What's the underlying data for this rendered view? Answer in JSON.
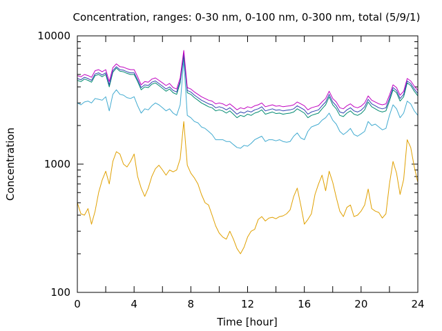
{
  "chart_data": {
    "type": "line",
    "title": "Concentration, ranges: 0-30 nm, 0-100 nm, 0-300 nm, total (5/9/1)",
    "xlabel": "Time [hour]",
    "ylabel": "Concentration",
    "xlim": [
      0,
      24
    ],
    "ylim": [
      100,
      10000
    ],
    "yscale": "log",
    "grid": false,
    "legend": "none",
    "xticks": [
      "0",
      "4",
      "8",
      "12",
      "16",
      "20",
      "24"
    ],
    "yticks": [
      "100",
      "1000",
      "10000"
    ],
    "series": [
      {
        "color": "#e0a000",
        "x": [
          0,
          0.25,
          0.5,
          0.75,
          1,
          1.25,
          1.5,
          1.75,
          2,
          2.25,
          2.5,
          2.75,
          3,
          3.25,
          3.5,
          3.75,
          4,
          4.25,
          4.5,
          4.75,
          5,
          5.25,
          5.5,
          5.75,
          6,
          6.25,
          6.5,
          6.75,
          7,
          7.25,
          7.5,
          7.75,
          8,
          8.25,
          8.5,
          8.75,
          9,
          9.25,
          9.5,
          9.75,
          10,
          10.25,
          10.5,
          10.75,
          11,
          11.25,
          11.5,
          11.75,
          12,
          12.25,
          12.5,
          12.75,
          13,
          13.25,
          13.5,
          13.75,
          14,
          14.25,
          14.5,
          14.75,
          15,
          15.25,
          15.5,
          15.75,
          16,
          16.25,
          16.5,
          16.75,
          17,
          17.25,
          17.5,
          17.75,
          18,
          18.25,
          18.5,
          18.75,
          19,
          19.25,
          19.5,
          19.75,
          20,
          20.25,
          20.5,
          20.75,
          21,
          21.25,
          21.5,
          21.75,
          22,
          22.25,
          22.5,
          22.75,
          23,
          23.25,
          23.5,
          23.75,
          24
        ],
        "y": [
          500,
          410,
          400,
          450,
          340,
          430,
          600,
          750,
          880,
          700,
          1050,
          1250,
          1200,
          1000,
          950,
          1050,
          1200,
          800,
          650,
          560,
          650,
          800,
          920,
          980,
          900,
          820,
          900,
          870,
          900,
          1100,
          2150,
          980,
          850,
          780,
          700,
          580,
          500,
          480,
          400,
          330,
          290,
          270,
          260,
          300,
          260,
          220,
          200,
          225,
          270,
          300,
          310,
          370,
          390,
          360,
          380,
          385,
          375,
          390,
          395,
          410,
          440,
          560,
          650,
          480,
          340,
          370,
          410,
          580,
          700,
          820,
          620,
          880,
          720,
          550,
          430,
          390,
          460,
          480,
          390,
          400,
          430,
          480,
          640,
          450,
          430,
          420,
          380,
          410,
          700,
          1050,
          850,
          580,
          760,
          1550,
          1350,
          950,
          720
        ]
      },
      {
        "color": "#40aad0",
        "x": [
          0,
          0.25,
          0.5,
          0.75,
          1,
          1.25,
          1.5,
          1.75,
          2,
          2.25,
          2.5,
          2.75,
          3,
          3.25,
          3.5,
          3.75,
          4,
          4.25,
          4.5,
          4.75,
          5,
          5.25,
          5.5,
          5.75,
          6,
          6.25,
          6.5,
          6.75,
          7,
          7.25,
          7.5,
          7.75,
          8,
          8.25,
          8.5,
          8.75,
          9,
          9.25,
          9.5,
          9.75,
          10,
          10.25,
          10.5,
          10.75,
          11,
          11.25,
          11.5,
          11.75,
          12,
          12.25,
          12.5,
          12.75,
          13,
          13.25,
          13.5,
          13.75,
          14,
          14.25,
          14.5,
          14.75,
          15,
          15.25,
          15.5,
          15.75,
          16,
          16.25,
          16.5,
          16.75,
          17,
          17.25,
          17.5,
          17.75,
          18,
          18.25,
          18.5,
          18.75,
          19,
          19.25,
          19.5,
          19.75,
          20,
          20.25,
          20.5,
          20.75,
          21,
          21.25,
          21.5,
          21.75,
          22,
          22.25,
          22.5,
          22.75,
          23,
          23.25,
          23.5,
          23.75,
          24
        ],
        "y": [
          3000,
          2900,
          3050,
          3100,
          3000,
          3250,
          3200,
          3150,
          3350,
          2600,
          3500,
          3800,
          3500,
          3450,
          3300,
          3250,
          3350,
          2850,
          2500,
          2700,
          2650,
          2850,
          3000,
          2900,
          2750,
          2600,
          2700,
          2500,
          2400,
          2900,
          6500,
          2400,
          2300,
          2150,
          2100,
          1950,
          1900,
          1800,
          1700,
          1550,
          1550,
          1550,
          1500,
          1500,
          1420,
          1350,
          1330,
          1400,
          1380,
          1450,
          1550,
          1600,
          1650,
          1500,
          1550,
          1550,
          1520,
          1550,
          1500,
          1480,
          1500,
          1650,
          1750,
          1600,
          1550,
          1800,
          1950,
          2000,
          2050,
          2200,
          2300,
          2500,
          2200,
          2050,
          1800,
          1700,
          1780,
          1900,
          1700,
          1650,
          1720,
          1800,
          2150,
          2000,
          2050,
          1950,
          1850,
          1900,
          2400,
          2900,
          2700,
          2300,
          2500,
          3100,
          2950,
          2600,
          2400
        ]
      },
      {
        "color": "#008a70",
        "x": [
          0,
          0.25,
          0.5,
          0.75,
          1,
          1.25,
          1.5,
          1.75,
          2,
          2.25,
          2.5,
          2.75,
          3,
          3.25,
          3.5,
          3.75,
          4,
          4.25,
          4.5,
          4.75,
          5,
          5.25,
          5.5,
          5.75,
          6,
          6.25,
          6.5,
          6.75,
          7,
          7.25,
          7.5,
          7.75,
          8,
          8.25,
          8.5,
          8.75,
          9,
          9.25,
          9.5,
          9.75,
          10,
          10.25,
          10.5,
          10.75,
          11,
          11.25,
          11.5,
          11.75,
          12,
          12.25,
          12.5,
          12.75,
          13,
          13.25,
          13.5,
          13.75,
          14,
          14.25,
          14.5,
          14.75,
          15,
          15.25,
          15.5,
          15.75,
          16,
          16.25,
          16.5,
          16.75,
          17,
          17.25,
          17.5,
          17.75,
          18,
          18.25,
          18.5,
          18.75,
          19,
          19.25,
          19.5,
          19.75,
          20,
          20.25,
          20.5,
          20.75,
          21,
          21.25,
          21.5,
          21.75,
          22,
          22.25,
          22.5,
          22.75,
          23,
          23.25,
          23.5,
          23.75,
          24
        ],
        "y": [
          4500,
          4400,
          4600,
          4500,
          4350,
          4900,
          5000,
          4800,
          5000,
          4000,
          5200,
          5600,
          5300,
          5250,
          5100,
          5000,
          5000,
          4400,
          3800,
          4000,
          3950,
          4200,
          4300,
          4100,
          3900,
          3700,
          3850,
          3600,
          3500,
          4300,
          7000,
          3600,
          3500,
          3300,
          3150,
          3000,
          2900,
          2800,
          2750,
          2600,
          2650,
          2600,
          2500,
          2600,
          2450,
          2300,
          2400,
          2350,
          2450,
          2400,
          2500,
          2550,
          2650,
          2450,
          2500,
          2550,
          2480,
          2500,
          2450,
          2480,
          2500,
          2550,
          2700,
          2600,
          2500,
          2300,
          2400,
          2450,
          2500,
          2700,
          2900,
          3350,
          2900,
          2700,
          2400,
          2350,
          2500,
          2600,
          2450,
          2400,
          2480,
          2650,
          3050,
          2800,
          2700,
          2600,
          2550,
          2600,
          3100,
          3800,
          3600,
          3100,
          3350,
          4300,
          4100,
          3700,
          3400
        ]
      },
      {
        "color": "#3040b0",
        "x": [
          0,
          0.25,
          0.5,
          0.75,
          1,
          1.25,
          1.5,
          1.75,
          2,
          2.25,
          2.5,
          2.75,
          3,
          3.25,
          3.5,
          3.75,
          4,
          4.25,
          4.5,
          4.75,
          5,
          5.25,
          5.5,
          5.75,
          6,
          6.25,
          6.5,
          6.75,
          7,
          7.25,
          7.5,
          7.75,
          8,
          8.25,
          8.5,
          8.75,
          9,
          9.25,
          9.5,
          9.75,
          10,
          10.25,
          10.5,
          10.75,
          11,
          11.25,
          11.5,
          11.75,
          12,
          12.25,
          12.5,
          12.75,
          13,
          13.25,
          13.5,
          13.75,
          14,
          14.25,
          14.5,
          14.75,
          15,
          15.25,
          15.5,
          15.75,
          16,
          16.25,
          16.5,
          16.75,
          17,
          17.25,
          17.5,
          17.75,
          18,
          18.25,
          18.5,
          18.75,
          19,
          19.25,
          19.5,
          19.75,
          20,
          20.25,
          20.5,
          20.75,
          21,
          21.25,
          21.5,
          21.75,
          22,
          22.25,
          22.5,
          22.75,
          23,
          23.25,
          23.5,
          23.75,
          24
        ],
        "y": [
          4650,
          4550,
          4750,
          4650,
          4500,
          5050,
          5150,
          4950,
          5150,
          4150,
          5350,
          5750,
          5450,
          5400,
          5250,
          5150,
          5150,
          4550,
          3950,
          4150,
          4100,
          4350,
          4450,
          4250,
          4050,
          3850,
          4000,
          3750,
          3650,
          4450,
          7300,
          3750,
          3650,
          3450,
          3300,
          3150,
          3050,
          2950,
          2900,
          2750,
          2800,
          2750,
          2650,
          2750,
          2600,
          2450,
          2550,
          2500,
          2600,
          2550,
          2650,
          2700,
          2800,
          2600,
          2650,
          2700,
          2630,
          2650,
          2600,
          2630,
          2650,
          2700,
          2850,
          2750,
          2650,
          2450,
          2550,
          2600,
          2650,
          2850,
          3050,
          3500,
          3050,
          2850,
          2550,
          2500,
          2650,
          2750,
          2600,
          2550,
          2630,
          2800,
          3200,
          2950,
          2850,
          2750,
          2700,
          2750,
          3250,
          3950,
          3750,
          3250,
          3500,
          4450,
          4250,
          3850,
          3550
        ]
      },
      {
        "color": "#c000c0",
        "x": [
          0,
          0.25,
          0.5,
          0.75,
          1,
          1.25,
          1.5,
          1.75,
          2,
          2.25,
          2.5,
          2.75,
          3,
          3.25,
          3.5,
          3.75,
          4,
          4.25,
          4.5,
          4.75,
          5,
          5.25,
          5.5,
          5.75,
          6,
          6.25,
          6.5,
          6.75,
          7,
          7.25,
          7.5,
          7.75,
          8,
          8.25,
          8.5,
          8.75,
          9,
          9.25,
          9.5,
          9.75,
          10,
          10.25,
          10.5,
          10.75,
          11,
          11.25,
          11.5,
          11.75,
          12,
          12.25,
          12.5,
          12.75,
          13,
          13.25,
          13.5,
          13.75,
          14,
          14.25,
          14.5,
          14.75,
          15,
          15.25,
          15.5,
          15.75,
          16,
          16.25,
          16.5,
          16.75,
          17,
          17.25,
          17.5,
          17.75,
          18,
          18.25,
          18.5,
          18.75,
          19,
          19.25,
          19.5,
          19.75,
          20,
          20.25,
          20.5,
          20.75,
          21,
          21.25,
          21.5,
          21.75,
          22,
          22.25,
          22.5,
          22.75,
          23,
          23.25,
          23.5,
          23.75,
          24
        ],
        "y": [
          4900,
          4800,
          5000,
          4900,
          4750,
          5350,
          5450,
          5250,
          5450,
          4400,
          5650,
          6050,
          5750,
          5700,
          5550,
          5450,
          5450,
          4800,
          4150,
          4400,
          4350,
          4600,
          4700,
          4500,
          4300,
          4100,
          4250,
          3950,
          3850,
          4700,
          7700,
          3950,
          3850,
          3650,
          3500,
          3350,
          3250,
          3150,
          3100,
          2950,
          3000,
          2950,
          2850,
          2950,
          2800,
          2650,
          2750,
          2700,
          2800,
          2750,
          2850,
          2900,
          3000,
          2800,
          2850,
          2900,
          2830,
          2850,
          2800,
          2830,
          2850,
          2900,
          3050,
          2950,
          2850,
          2650,
          2750,
          2800,
          2850,
          3050,
          3250,
          3700,
          3250,
          3050,
          2750,
          2700,
          2850,
          2950,
          2800,
          2750,
          2830,
          3000,
          3400,
          3150,
          3050,
          2950,
          2900,
          2950,
          3450,
          4150,
          3950,
          3450,
          3700,
          4650,
          4450,
          4050,
          3750
        ]
      }
    ]
  }
}
